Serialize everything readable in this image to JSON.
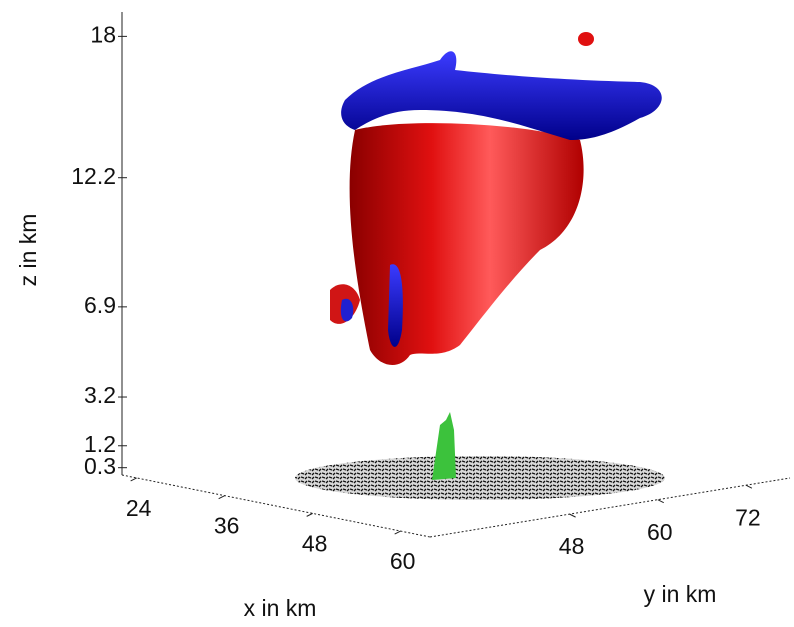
{
  "chart_data": {
    "type": "isosurface3d",
    "xlabel": "x in km",
    "ylabel": "y in km",
    "zlabel": "z in km",
    "xlim": [
      22,
      64
    ],
    "xticks": [
      24,
      36,
      48,
      60
    ],
    "ylim": [
      29,
      78
    ],
    "yticks": [
      48,
      60,
      72
    ],
    "zlim": [
      0,
      19
    ],
    "zticks": [
      0.3,
      1.2,
      3.2,
      6.9,
      12.2,
      18
    ]
  }
}
